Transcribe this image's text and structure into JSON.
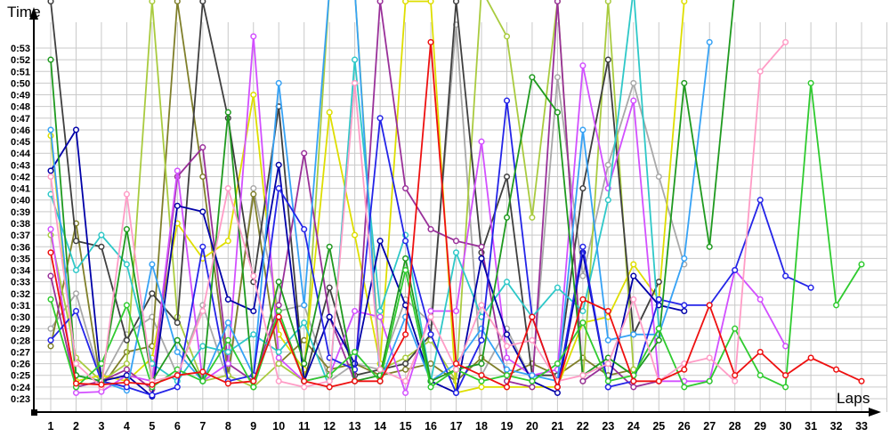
{
  "chart_data": {
    "type": "line",
    "title": "",
    "xlabel": "Laps",
    "ylabel": "Time",
    "y_unit": "m:ss",
    "grid": true,
    "legend": "none",
    "marker": "open-circle",
    "x_ticks": [
      1,
      2,
      3,
      4,
      5,
      6,
      7,
      8,
      9,
      10,
      11,
      12,
      13,
      14,
      15,
      16,
      17,
      18,
      19,
      20,
      21,
      22,
      23,
      24,
      25,
      26,
      27,
      28,
      29,
      30,
      31,
      32,
      33
    ],
    "y_tick_labels": [
      "0:23",
      "0:24",
      "0:25",
      "0:26",
      "0:27",
      "0:28",
      "0:29",
      "0:30",
      "0:31",
      "0:32",
      "0:33",
      "0:34",
      "0:35",
      "0:36",
      "0:37",
      "0:38",
      "0:39",
      "0:40",
      "0:41",
      "0:42",
      "0:43",
      "0:44",
      "0:45",
      "0:46",
      "0:47",
      "0:48",
      "0:49",
      "0:50",
      "0:51",
      "0:52",
      "0:53"
    ],
    "y_range_seconds": [
      23,
      53
    ],
    "note_offscale": "values greater than 54 run off the top of the plot",
    "series": [
      {
        "name": "gray",
        "color": "#a8a8a8",
        "values": [
          29,
          32,
          24.5,
          28.5,
          30,
          25,
          31,
          24.5,
          41,
          30.5,
          31,
          24.5,
          26,
          25.5,
          31.5,
          29.5,
          55,
          25,
          29,
          24.5,
          50.5,
          33.5,
          43,
          50,
          42,
          34.5
        ]
      },
      {
        "name": "olive",
        "color": "#7f7f2a",
        "values": [
          27.5,
          38,
          24,
          27,
          27.5,
          57,
          42,
          25,
          40.5,
          26,
          28,
          25.5,
          26,
          25,
          25.5,
          26,
          24.5,
          26.5,
          25,
          26,
          25,
          26.5,
          25,
          25.5
        ]
      },
      {
        "name": "yellowgreen",
        "color": "#a9cb3f",
        "values": [
          37,
          26.5,
          24.5,
          26,
          57,
          30,
          24.5,
          25,
          24,
          26,
          24.5,
          58,
          58,
          25.5,
          26.5,
          28,
          24.5,
          58,
          54,
          38.5,
          57,
          24.5,
          57,
          25.5
        ]
      },
      {
        "name": "yellow",
        "color": "#dede00",
        "values": [
          45.5,
          24.5,
          25,
          24.5,
          26.5,
          38,
          35,
          36.5,
          49,
          28.5,
          25.5,
          47.5,
          37,
          26,
          57,
          57,
          23.5,
          24,
          24,
          24,
          24,
          29.5,
          30,
          34.5,
          31.5,
          57
        ]
      },
      {
        "name": "black",
        "color": "#3f3f3f",
        "values": [
          57,
          36.5,
          36,
          28,
          32,
          29.5,
          57,
          47,
          33,
          48,
          24.5,
          32.5,
          25,
          25.5,
          26,
          28.5,
          57,
          35.5,
          42,
          25,
          25,
          41,
          52,
          28.5,
          33
        ]
      },
      {
        "name": "purple",
        "color": "#993099",
        "values": [
          33.5,
          24,
          24.5,
          25.5,
          23.8,
          42,
          44.5,
          26,
          24.5,
          31,
          44,
          30,
          24.5,
          57,
          41,
          37.5,
          36.5,
          36,
          24.5,
          24,
          57,
          24.5,
          26,
          24,
          24.5
        ]
      },
      {
        "name": "magenta",
        "color": "#d24fff",
        "values": [
          37.5,
          23.5,
          23.6,
          25,
          24.5,
          42.5,
          24.5,
          26,
          54,
          26.5,
          24.5,
          25,
          30.5,
          30,
          23.5,
          30.5,
          30.5,
          45,
          26.5,
          25,
          25.5,
          51.5,
          41,
          48.5,
          24.5,
          24.5,
          24.5,
          34,
          31.5,
          27.5
        ]
      },
      {
        "name": "turquoise",
        "color": "#2ec8c8",
        "values": [
          40.5,
          34,
          37,
          34.5,
          26,
          24.5,
          27.5,
          27,
          28.5,
          27,
          29.5,
          24,
          52,
          30.5,
          37,
          24.5,
          35.5,
          30,
          33,
          30,
          32.5,
          30.5,
          40,
          58,
          29
        ]
      },
      {
        "name": "navy",
        "color": "#0000a8",
        "values": [
          42.5,
          46,
          24.5,
          25,
          23.2,
          39.5,
          39,
          31.5,
          30.5,
          43,
          24.5,
          30,
          26,
          36.5,
          31,
          24.5,
          23.5,
          35,
          28.5,
          24.5,
          23.5,
          35.5,
          24,
          33.5,
          31,
          30.5
        ]
      },
      {
        "name": "dodgerblue",
        "color": "#36a2f5",
        "values": [
          46,
          25,
          24.5,
          23.7,
          34.5,
          27,
          24.5,
          29.5,
          25,
          50,
          31,
          58,
          58,
          24.5,
          30,
          24.5,
          26,
          29,
          25.5,
          25,
          24.5,
          46,
          28,
          28.5,
          28.5,
          35,
          53.5
        ]
      },
      {
        "name": "blue",
        "color": "#2424e8",
        "values": [
          28,
          30.5,
          24.5,
          24,
          23.3,
          24,
          36,
          24.5,
          25,
          41,
          37.5,
          26.5,
          25.5,
          47,
          36.5,
          28.5,
          23.5,
          28,
          48.5,
          30,
          24,
          36,
          24,
          24.5,
          31.5,
          31,
          31,
          34,
          40,
          33.5,
          32.5
        ]
      },
      {
        "name": "green",
        "color": "#1f9a1f",
        "values": [
          52,
          25,
          24.5,
          37.5,
          24.5,
          28,
          24.5,
          47.5,
          24,
          33,
          26,
          36,
          24.5,
          25,
          35,
          24.5,
          25.5,
          26,
          38.5,
          50.5,
          47.5,
          25,
          26.5,
          25,
          28,
          50,
          36,
          58
        ]
      },
      {
        "name": "brightgreen",
        "color": "#2fcb2f",
        "values": [
          31.5,
          24,
          26,
          31,
          24,
          25.5,
          24.5,
          28,
          24,
          30.5,
          24.5,
          25,
          27,
          24.5,
          34,
          24,
          25.5,
          24.5,
          25,
          24.5,
          26,
          29.5,
          24.5,
          25,
          29,
          24,
          24.5,
          29,
          25,
          24,
          50,
          31,
          34.5
        ]
      },
      {
        "name": "pink",
        "color": "#ff9cc6",
        "values": [
          42,
          26,
          24,
          40.5,
          24.5,
          25,
          30.5,
          41,
          33.5,
          24.5,
          24,
          24.5,
          50,
          25.5,
          24.5,
          30,
          25.5,
          31,
          27.5,
          28,
          24.5,
          25,
          26,
          31.5,
          24.5,
          26,
          26.5,
          24.5,
          51,
          53.5
        ]
      },
      {
        "name": "red",
        "color": "#ee1010",
        "values": [
          35.5,
          24.3,
          24.2,
          24.4,
          24.2,
          25,
          25.3,
          24.3,
          24.5,
          30,
          24.5,
          24,
          24.5,
          24.5,
          28.5,
          53.5,
          26,
          25,
          24,
          30,
          24,
          31.5,
          30.5,
          24.5,
          24.5,
          25.5,
          31,
          25,
          27,
          25,
          26.5,
          25.5,
          24.5
        ]
      }
    ]
  }
}
